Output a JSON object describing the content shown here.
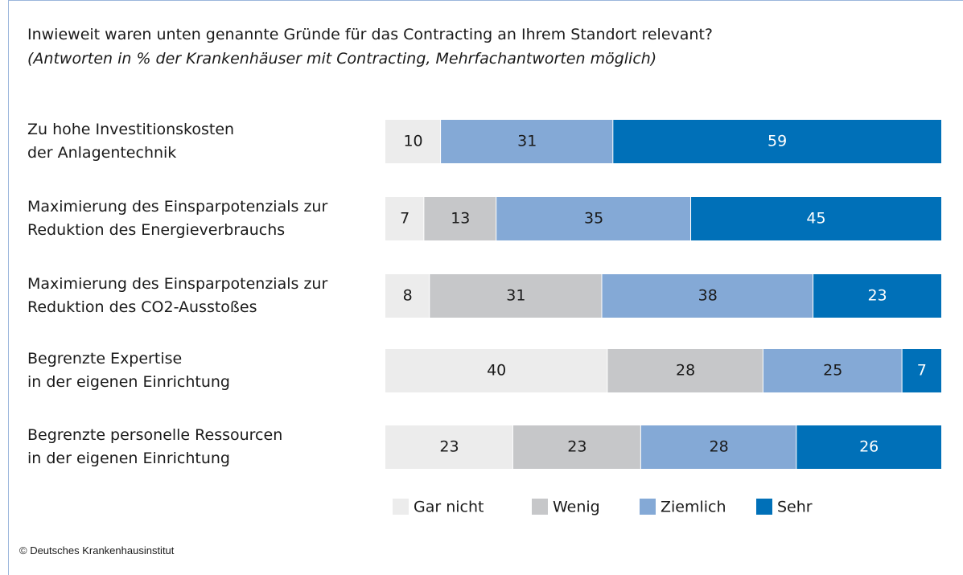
{
  "chart_data": {
    "type": "stacked_barh",
    "title": "Inwieweit waren unten genannte Gründe für das Contracting an Ihrem Standort relevant?",
    "subtitle": "(Antworten in % der Krankenhäuser mit Contracting, Mehrfachantworten möglich)",
    "credit": "© Deutsches Krankenhausinstitut",
    "categories": [
      "Zu hohe Investitionskosten\nder Anlagentechnik",
      "Maximierung des Einsparpotenzials zur\nReduktion des Energieverbrauchs",
      "Maximierung des Einsparpotenzials zur\nReduktion des CO2-Ausstoßes",
      "Begrenzte Expertise\nin der eigenen Einrichtung",
      "Begrenzte personelle Ressourcen\nin der eigenen Einrichtung"
    ],
    "series": [
      {
        "name": "Gar nicht",
        "color": "#ececec",
        "values": [
          10,
          7,
          8,
          40,
          23
        ]
      },
      {
        "name": "Wenig",
        "color": "#c6c7c9",
        "values": [
          0,
          13,
          31,
          28,
          23
        ]
      },
      {
        "name": "Ziemlich",
        "color": "#84a9d6",
        "values": [
          31,
          35,
          38,
          25,
          28
        ]
      },
      {
        "name": "Sehr",
        "color": "#0070b8",
        "values": [
          59,
          45,
          23,
          7,
          26
        ]
      }
    ],
    "xlim": [
      0,
      100
    ]
  }
}
